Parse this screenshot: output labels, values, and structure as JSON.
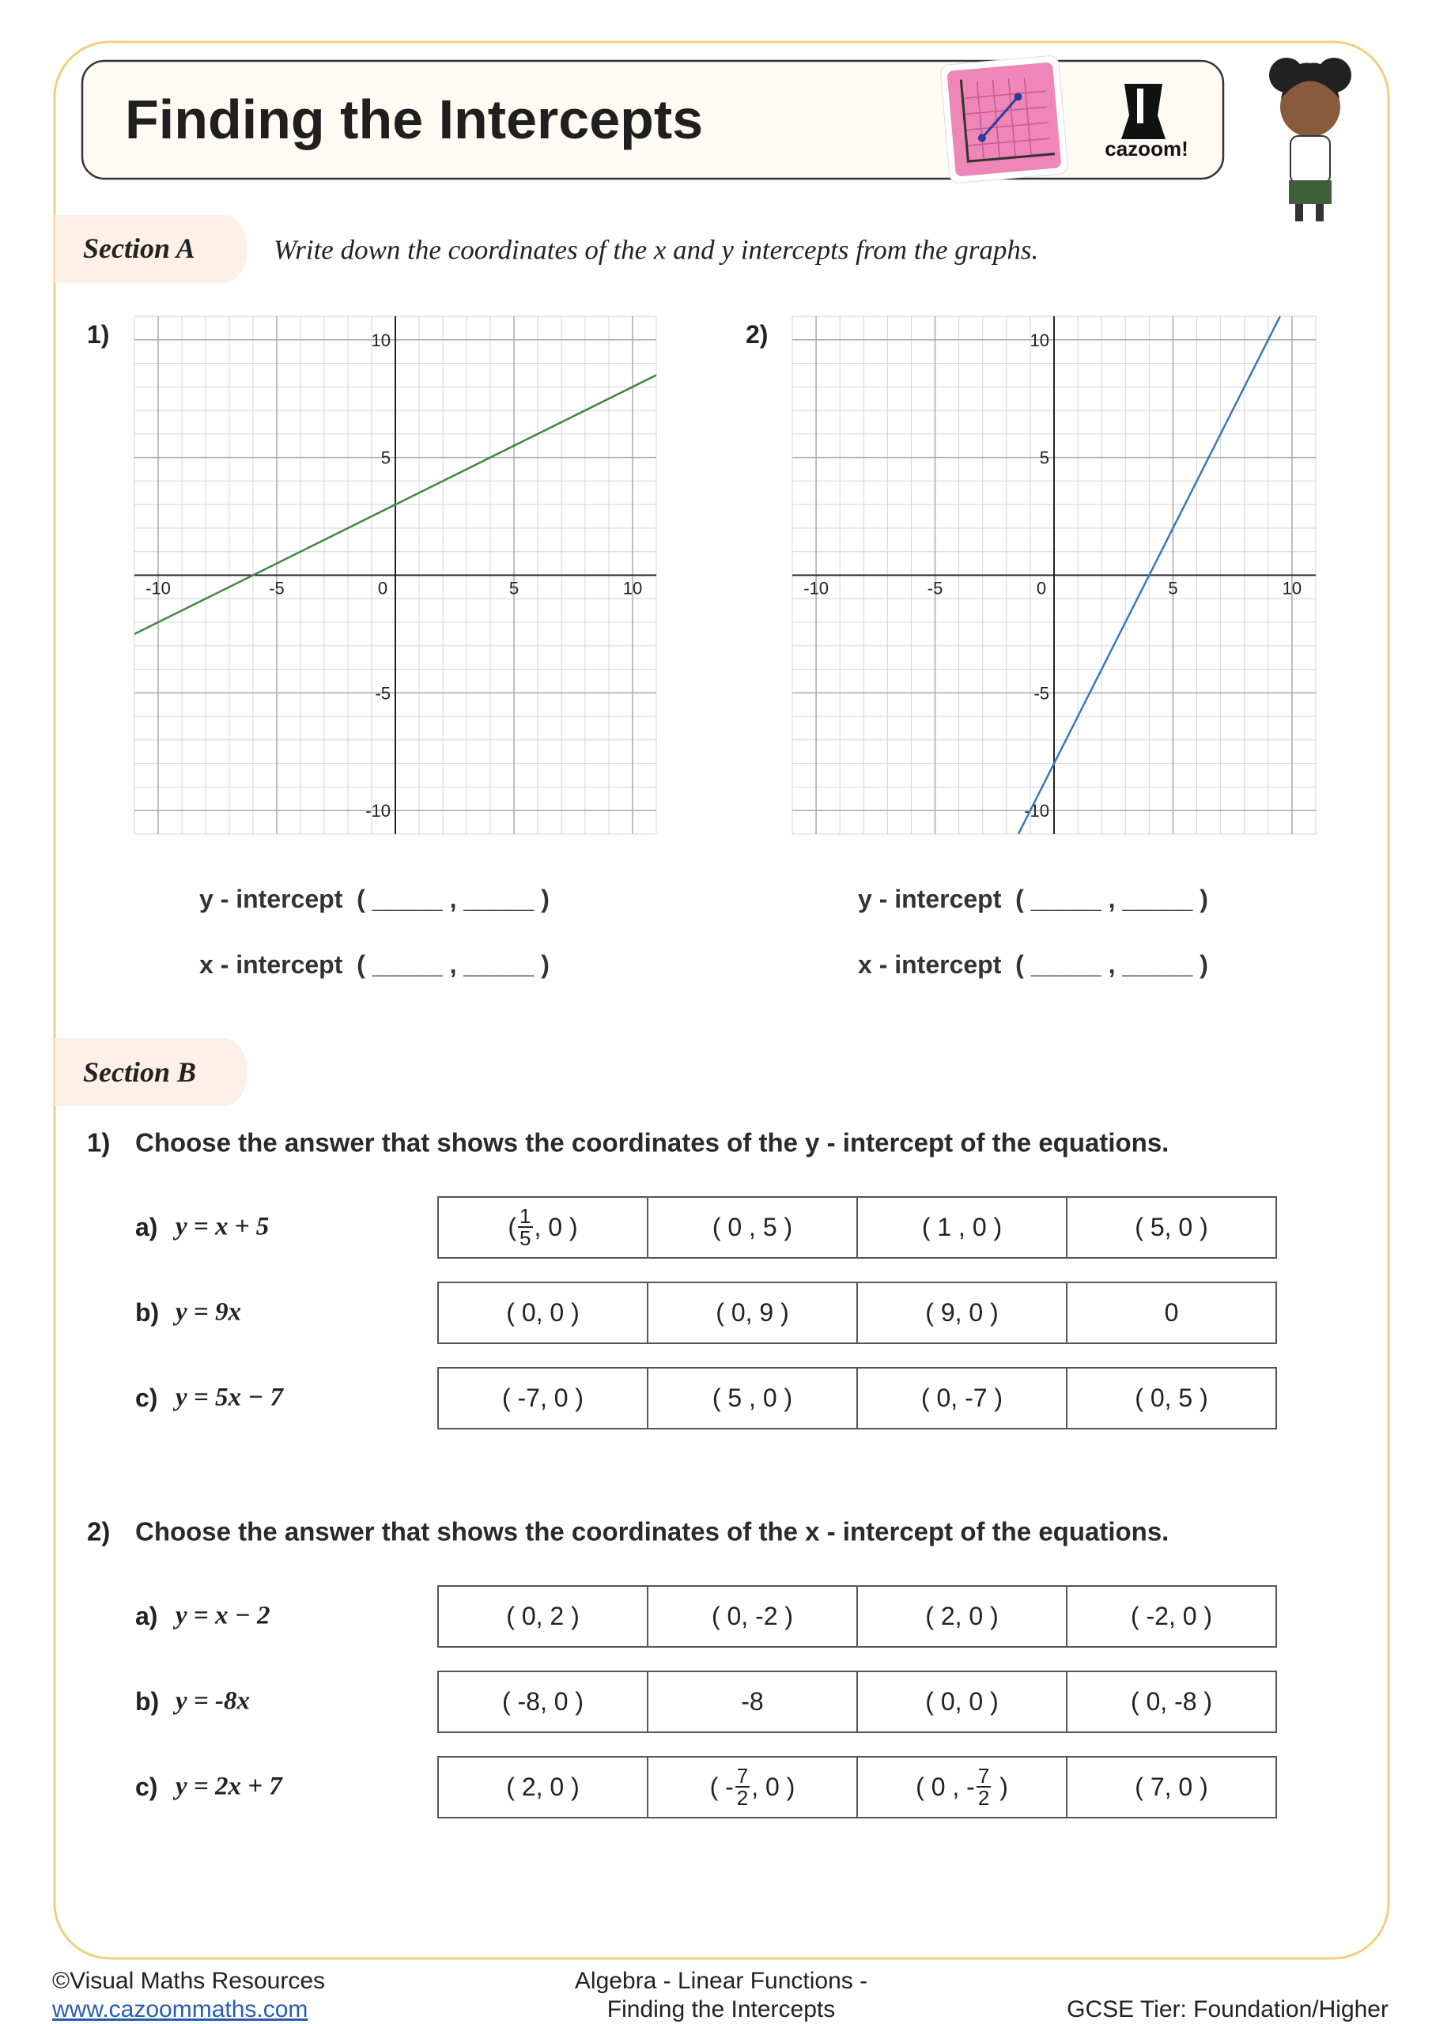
{
  "header": {
    "title": "Finding the Intercepts",
    "logo": "cazoom!"
  },
  "section_a": {
    "label": "Section A",
    "instruction": "Write down the coordinates of the x and y intercepts from the graphs.",
    "graphs": [
      {
        "number": "1)",
        "xlim": [
          -11,
          11
        ],
        "ylim": [
          -11,
          11
        ],
        "xticks": [
          -10,
          -5,
          0,
          5,
          10
        ],
        "yticks": [
          -10,
          -5,
          5,
          10
        ],
        "color": "#3d8a3d",
        "line": {
          "x": [
            -11,
            11
          ],
          "y": [
            -2.5,
            8.5
          ]
        },
        "prompts": [
          "y - intercept  ( _____ , _____ )",
          "x - intercept  ( _____ , _____ )"
        ]
      },
      {
        "number": "2)",
        "xlim": [
          -11,
          11
        ],
        "ylim": [
          -11,
          11
        ],
        "xticks": [
          -10,
          -5,
          0,
          5,
          10
        ],
        "yticks": [
          -10,
          -5,
          5,
          10
        ],
        "color": "#3b78b8",
        "line": {
          "x": [
            -1.5,
            9.5
          ],
          "y": [
            -11,
            11
          ]
        },
        "prompts": [
          "y - intercept  ( _____ , _____ )",
          "x - intercept  ( _____ , _____ )"
        ]
      }
    ]
  },
  "section_b": {
    "label": "Section B",
    "questions": [
      {
        "number": "1)",
        "text": "Choose the answer that shows the coordinates of the y - intercept of the equations.",
        "items": [
          {
            "letter": "a)",
            "equation": "y = x + 5",
            "options": [
              {
                "before": "(",
                "num": "1",
                "den": "5",
                "after": ", 0 )"
              },
              "( 0 , 5 )",
              "( 1 , 0 )",
              "( 5, 0 )"
            ]
          },
          {
            "letter": "b)",
            "equation": "y = 9x",
            "options": [
              "( 0, 0 )",
              "( 0, 9 )",
              "( 9, 0 )",
              "0"
            ]
          },
          {
            "letter": "c)",
            "equation": "y = 5x − 7",
            "options": [
              "( -7, 0 )",
              "( 5 , 0 )",
              "( 0, -7 )",
              "( 0, 5 )"
            ]
          }
        ]
      },
      {
        "number": "2)",
        "text": "Choose the answer that shows the coordinates of the x - intercept of the equations.",
        "items": [
          {
            "letter": "a)",
            "equation": "y = x − 2",
            "options": [
              "( 0, 2 )",
              "( 0, -2 )",
              "( 2, 0 )",
              "( -2, 0 )"
            ]
          },
          {
            "letter": "b)",
            "equation": "y = -8x",
            "options": [
              "( -8, 0 )",
              "-8",
              "( 0, 0 )",
              "( 0, -8 )"
            ]
          },
          {
            "letter": "c)",
            "equation": "y = 2x + 7",
            "options": [
              "( 2, 0 )",
              {
                "before": "( -",
                "num": "7",
                "den": "2",
                "after": ", 0 )"
              },
              {
                "before": "( 0 , -",
                "num": "7",
                "den": "2",
                "after": " )"
              },
              "( 7, 0 )"
            ]
          }
        ]
      }
    ]
  },
  "footer": {
    "copyright": "©Visual Maths Resources",
    "website": "www.cazoommaths.com",
    "topic": [
      "Algebra - Linear Functions -",
      "Finding the Intercepts"
    ],
    "tier": "GCSE Tier: Foundation/Higher"
  }
}
